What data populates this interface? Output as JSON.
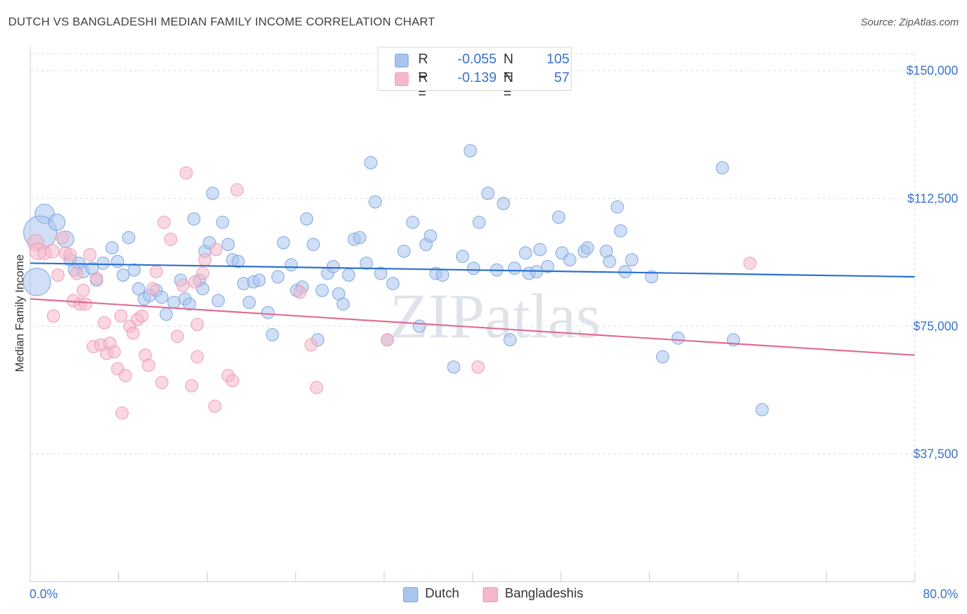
{
  "title": "DUTCH VS BANGLADESHI MEDIAN FAMILY INCOME CORRELATION CHART",
  "source": "Source: ZipAtlas.com",
  "watermark": "ZIPatlas",
  "legend": {
    "rows": [
      {
        "r_label": "R =",
        "r_value": "-0.055",
        "n_label": "N =",
        "n_value": "105",
        "color": "#a9c5ee"
      },
      {
        "r_label": "R =",
        "r_value": "-0.139",
        "n_label": "N =",
        "n_value": "57",
        "color": "#f5b8cb"
      }
    ]
  },
  "bottom_legend": [
    {
      "label": "Dutch",
      "color": "#a9c5ee"
    },
    {
      "label": "Bangladeshis",
      "color": "#f5b8cb"
    }
  ],
  "chart_data": {
    "type": "scatter",
    "ylabel": "Median Family Income",
    "x_tick_labels": [
      "0.0%",
      "80.0%"
    ],
    "y_tick_labels": [
      "$150,000",
      "$112,500",
      "$75,000",
      "$37,500"
    ],
    "y_ticks": [
      150000,
      112500,
      75000,
      37500
    ],
    "xlim": [
      0,
      80
    ],
    "ylim": [
      0,
      155000
    ],
    "grid": true,
    "series": [
      {
        "name": "Dutch",
        "color": "#7aa6e0",
        "fill": "#a9c5ee",
        "trend": {
          "x": [
            0,
            80
          ],
          "y": [
            93500,
            89500
          ],
          "color": "#2a6fd0"
        },
        "points": [
          [
            1.3,
            108000,
            14
          ],
          [
            0.9,
            102500,
            24
          ],
          [
            0.6,
            88000,
            20
          ],
          [
            2.4,
            105500,
            12
          ],
          [
            3.2,
            100500,
            12
          ],
          [
            3.6,
            94500,
            9
          ],
          [
            4.0,
            91500,
            9
          ],
          [
            4.8,
            91000,
            9
          ],
          [
            6.0,
            88500,
            9
          ],
          [
            5.6,
            92000,
            9
          ],
          [
            6.6,
            93500,
            9
          ],
          [
            7.4,
            98000,
            9
          ],
          [
            7.9,
            94000,
            9
          ],
          [
            8.4,
            90000,
            9
          ],
          [
            8.9,
            101000,
            9
          ],
          [
            9.4,
            91500,
            9
          ],
          [
            9.8,
            86000,
            9
          ],
          [
            10.3,
            83000,
            9
          ],
          [
            10.8,
            84000,
            9
          ],
          [
            11.4,
            85500,
            9
          ],
          [
            11.9,
            83500,
            9
          ],
          [
            12.3,
            78500,
            9
          ],
          [
            13.0,
            82000,
            9
          ],
          [
            13.6,
            88500,
            9
          ],
          [
            14.0,
            83000,
            9
          ],
          [
            14.4,
            81500,
            9
          ],
          [
            14.8,
            106500,
            9
          ],
          [
            15.3,
            88500,
            9
          ],
          [
            15.8,
            97000,
            9
          ],
          [
            16.2,
            99500,
            9
          ],
          [
            16.5,
            114000,
            9
          ],
          [
            17.0,
            82500,
            9
          ],
          [
            17.4,
            105500,
            9
          ],
          [
            17.9,
            99000,
            9
          ],
          [
            18.3,
            94500,
            9
          ],
          [
            18.8,
            94000,
            9
          ],
          [
            19.3,
            87500,
            9
          ],
          [
            19.8,
            82000,
            9
          ],
          [
            20.2,
            88000,
            9
          ],
          [
            20.7,
            88500,
            9
          ],
          [
            21.5,
            79000,
            9
          ],
          [
            21.9,
            72500,
            9
          ],
          [
            22.4,
            89500,
            9
          ],
          [
            22.9,
            99500,
            9
          ],
          [
            23.6,
            93000,
            9
          ],
          [
            24.1,
            85500,
            9
          ],
          [
            24.6,
            86500,
            9
          ],
          [
            25.0,
            106500,
            9
          ],
          [
            25.6,
            99000,
            9
          ],
          [
            26.0,
            71000,
            9
          ],
          [
            26.4,
            85500,
            9
          ],
          [
            26.9,
            90500,
            9
          ],
          [
            27.4,
            92500,
            9
          ],
          [
            27.9,
            84500,
            9
          ],
          [
            28.3,
            81500,
            9
          ],
          [
            28.8,
            90000,
            9
          ],
          [
            29.3,
            100500,
            9
          ],
          [
            29.8,
            101000,
            9
          ],
          [
            30.4,
            93500,
            9
          ],
          [
            30.8,
            123000,
            9
          ],
          [
            31.2,
            111500,
            9
          ],
          [
            31.7,
            90500,
            9
          ],
          [
            32.3,
            71000,
            9
          ],
          [
            32.8,
            87500,
            9
          ],
          [
            33.8,
            97000,
            9
          ],
          [
            34.6,
            105500,
            9
          ],
          [
            35.2,
            75000,
            9
          ],
          [
            35.8,
            99000,
            9
          ],
          [
            36.2,
            101500,
            9
          ],
          [
            36.7,
            90500,
            9
          ],
          [
            37.3,
            90000,
            9
          ],
          [
            38.3,
            63000,
            9
          ],
          [
            39.1,
            95500,
            9
          ],
          [
            39.8,
            126500,
            9
          ],
          [
            40.1,
            92000,
            9
          ],
          [
            40.6,
            105500,
            9
          ],
          [
            41.4,
            114000,
            9
          ],
          [
            42.2,
            91500,
            9
          ],
          [
            42.8,
            111000,
            9
          ],
          [
            43.4,
            71000,
            9
          ],
          [
            43.8,
            92000,
            9
          ],
          [
            44.8,
            96500,
            9
          ],
          [
            45.1,
            90500,
            9
          ],
          [
            45.8,
            91000,
            9
          ],
          [
            46.1,
            97500,
            9
          ],
          [
            46.8,
            92500,
            9
          ],
          [
            47.8,
            107000,
            9
          ],
          [
            48.1,
            96500,
            9
          ],
          [
            48.8,
            94500,
            9
          ],
          [
            50.1,
            97000,
            9
          ],
          [
            50.4,
            98000,
            9
          ],
          [
            52.1,
            97000,
            9
          ],
          [
            52.4,
            94000,
            9
          ],
          [
            53.1,
            110000,
            9
          ],
          [
            53.4,
            103000,
            9
          ],
          [
            53.8,
            91000,
            9
          ],
          [
            54.4,
            94500,
            9
          ],
          [
            56.2,
            89500,
            9
          ],
          [
            57.2,
            66000,
            9
          ],
          [
            58.6,
            71500,
            9
          ],
          [
            62.6,
            121500,
            9
          ],
          [
            63.6,
            71000,
            9
          ],
          [
            66.2,
            50500,
            9
          ],
          [
            4.4,
            93500,
            9
          ],
          [
            15.6,
            86000,
            9
          ]
        ]
      },
      {
        "name": "Bangladeshis",
        "color": "#ef9ab4",
        "fill": "#f5b8cb",
        "trend": {
          "x": [
            0,
            80
          ],
          "y": [
            83000,
            66500
          ],
          "color": "#e06a95"
        },
        "points": [
          [
            0.5,
            99500,
            12
          ],
          [
            0.7,
            97000,
            12
          ],
          [
            1.3,
            96500,
            10
          ],
          [
            2.0,
            97000,
            10
          ],
          [
            2.1,
            78000,
            9
          ],
          [
            2.5,
            90000,
            9
          ],
          [
            2.9,
            101000,
            9
          ],
          [
            3.2,
            96500,
            9
          ],
          [
            3.6,
            96000,
            9
          ],
          [
            3.9,
            82500,
            9
          ],
          [
            4.2,
            90500,
            9
          ],
          [
            4.5,
            81500,
            9
          ],
          [
            4.8,
            85500,
            9
          ],
          [
            5.0,
            81500,
            9
          ],
          [
            5.4,
            96000,
            9
          ],
          [
            5.7,
            69000,
            9
          ],
          [
            6.0,
            89000,
            9
          ],
          [
            6.4,
            69500,
            9
          ],
          [
            6.7,
            76000,
            9
          ],
          [
            6.9,
            67000,
            9
          ],
          [
            7.2,
            70000,
            9
          ],
          [
            7.6,
            67500,
            9
          ],
          [
            7.9,
            62500,
            9
          ],
          [
            8.2,
            78000,
            9
          ],
          [
            8.6,
            60500,
            9
          ],
          [
            8.3,
            49500,
            9
          ],
          [
            9.0,
            75000,
            9
          ],
          [
            9.3,
            73000,
            9
          ],
          [
            9.7,
            77000,
            9
          ],
          [
            10.1,
            78000,
            9
          ],
          [
            10.4,
            66500,
            9
          ],
          [
            10.7,
            63500,
            9
          ],
          [
            11.1,
            86000,
            9
          ],
          [
            11.4,
            91000,
            9
          ],
          [
            11.9,
            58500,
            9
          ],
          [
            12.1,
            105500,
            9
          ],
          [
            12.7,
            100500,
            9
          ],
          [
            13.3,
            72000,
            9
          ],
          [
            13.8,
            87000,
            9
          ],
          [
            14.1,
            120000,
            9
          ],
          [
            14.6,
            57500,
            9
          ],
          [
            15.1,
            75500,
            9
          ],
          [
            15.1,
            66000,
            9
          ],
          [
            15.6,
            90500,
            9
          ],
          [
            15.8,
            94500,
            9
          ],
          [
            16.7,
            51500,
            9
          ],
          [
            16.8,
            97500,
            9
          ],
          [
            17.9,
            60500,
            9
          ],
          [
            18.3,
            59000,
            9
          ],
          [
            18.7,
            115000,
            9
          ],
          [
            24.4,
            85000,
            9
          ],
          [
            25.4,
            69500,
            9
          ],
          [
            25.9,
            57000,
            9
          ],
          [
            32.3,
            71000,
            9
          ],
          [
            40.5,
            63000,
            9
          ],
          [
            65.1,
            93500,
            9
          ],
          [
            14.9,
            88000,
            9
          ]
        ]
      }
    ]
  }
}
